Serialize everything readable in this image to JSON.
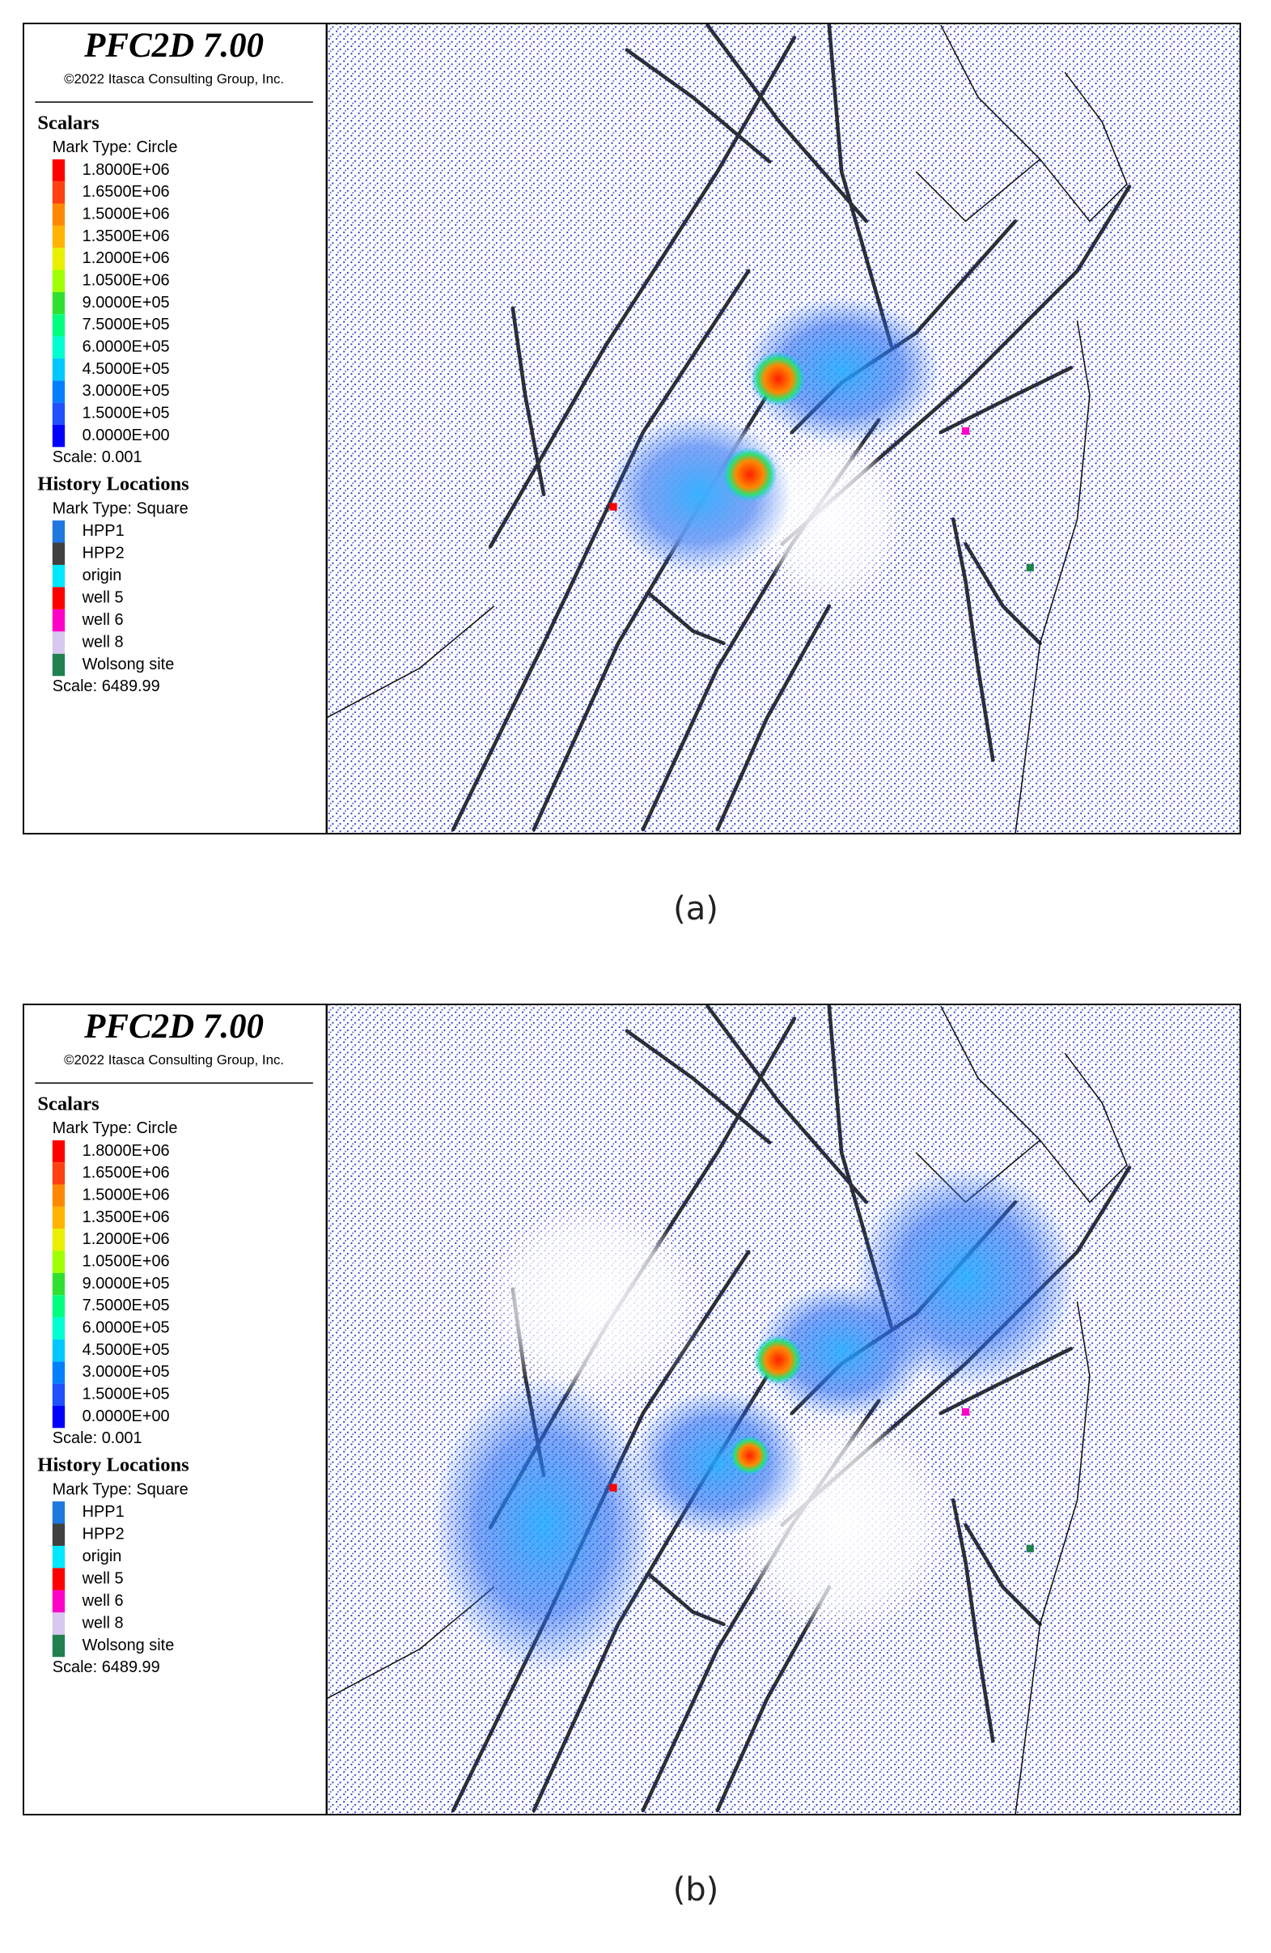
{
  "panels": [
    {
      "header": {
        "title": "PFC2D 7.00",
        "copyright": "©2022 Itasca Consulting Group, Inc."
      },
      "scalars": {
        "title": "Scalars",
        "mark_type": "Mark Type: Circle",
        "entries": [
          {
            "label": "1.8000E+06",
            "color": "#ff0000"
          },
          {
            "label": "1.6500E+06",
            "color": "#ff4010"
          },
          {
            "label": "1.5000E+06",
            "color": "#ff8800"
          },
          {
            "label": "1.3500E+06",
            "color": "#ffb400"
          },
          {
            "label": "1.2000E+06",
            "color": "#e8f000"
          },
          {
            "label": "1.0500E+06",
            "color": "#a0ff00"
          },
          {
            "label": "9.0000E+05",
            "color": "#30e030"
          },
          {
            "label": "7.5000E+05",
            "color": "#00ff80"
          },
          {
            "label": "6.0000E+05",
            "color": "#00ffd0"
          },
          {
            "label": "4.5000E+05",
            "color": "#00c8ff"
          },
          {
            "label": "3.0000E+05",
            "color": "#0080ff"
          },
          {
            "label": "1.5000E+05",
            "color": "#2050ff"
          },
          {
            "label": "0.0000E+00",
            "color": "#0000ff"
          }
        ],
        "scale": "Scale: 0.001"
      },
      "history": {
        "title": "History Locations",
        "mark_type": "Mark Type: Square",
        "entries": [
          {
            "label": "HPP1",
            "color": "#1e78e0"
          },
          {
            "label": "HPP2",
            "color": "#404040"
          },
          {
            "label": "origin",
            "color": "#00e8ff"
          },
          {
            "label": "well 5",
            "color": "#ff0000"
          },
          {
            "label": "well 6",
            "color": "#ff00c8"
          },
          {
            "label": "well 8",
            "color": "#d8c8f0"
          },
          {
            "label": "Wolsong site",
            "color": "#208050"
          }
        ],
        "scale": "Scale: 6489.99"
      },
      "caption": "(a)"
    },
    {
      "header": {
        "title": "PFC2D 7.00",
        "copyright": "©2022 Itasca Consulting Group, Inc."
      },
      "scalars": {
        "title": "Scalars",
        "mark_type": "Mark Type: Circle",
        "entries": [
          {
            "label": "1.8000E+06",
            "color": "#ff0000"
          },
          {
            "label": "1.6500E+06",
            "color": "#ff4010"
          },
          {
            "label": "1.5000E+06",
            "color": "#ff8800"
          },
          {
            "label": "1.3500E+06",
            "color": "#ffb400"
          },
          {
            "label": "1.2000E+06",
            "color": "#e8f000"
          },
          {
            "label": "1.0500E+06",
            "color": "#a0ff00"
          },
          {
            "label": "9.0000E+05",
            "color": "#30e030"
          },
          {
            "label": "7.5000E+05",
            "color": "#00ff80"
          },
          {
            "label": "6.0000E+05",
            "color": "#00ffd0"
          },
          {
            "label": "4.5000E+05",
            "color": "#00c8ff"
          },
          {
            "label": "3.0000E+05",
            "color": "#0080ff"
          },
          {
            "label": "1.5000E+05",
            "color": "#2050ff"
          },
          {
            "label": "0.0000E+00",
            "color": "#0000ff"
          }
        ],
        "scale": "Scale: 0.001"
      },
      "history": {
        "title": "History Locations",
        "mark_type": "Mark Type: Square",
        "entries": [
          {
            "label": "HPP1",
            "color": "#1e78e0"
          },
          {
            "label": "HPP2",
            "color": "#404040"
          },
          {
            "label": "origin",
            "color": "#00e8ff"
          },
          {
            "label": "well 5",
            "color": "#ff0000"
          },
          {
            "label": "well 6",
            "color": "#ff00c8"
          },
          {
            "label": "well 8",
            "color": "#d8c8f0"
          },
          {
            "label": "Wolsong site",
            "color": "#208050"
          }
        ],
        "scale": "Scale: 6489.99"
      },
      "caption": "(b)"
    }
  ]
}
